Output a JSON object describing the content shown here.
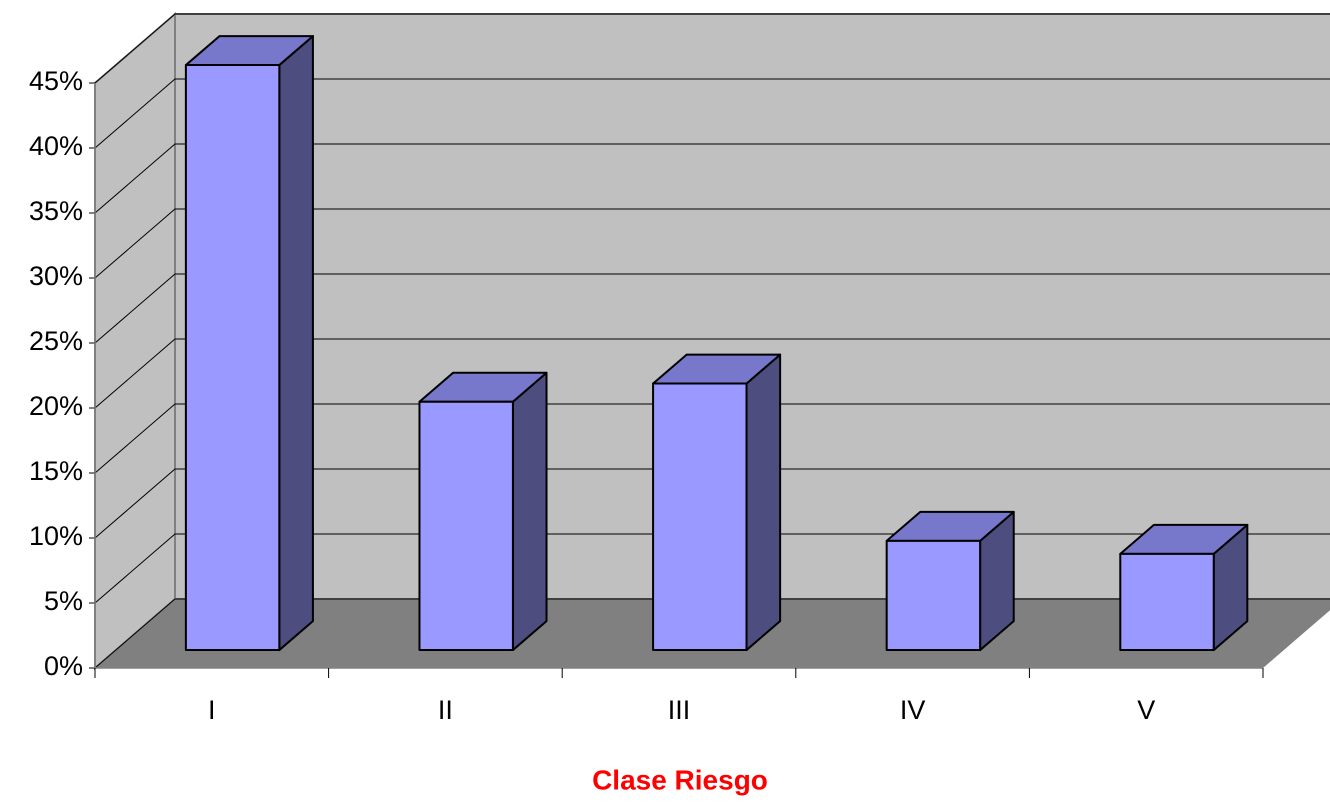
{
  "chart_data": {
    "type": "bar3d",
    "x_label": "Clase Riesgo",
    "categories": [
      "I",
      "II",
      "III",
      "IV",
      "V"
    ],
    "values": [
      45,
      19.1,
      20.5,
      8.4,
      7.4
    ],
    "color": "#9999ff",
    "ylim": [
      0,
      45
    ],
    "yticks": [
      {
        "value": 0,
        "label": "0%"
      },
      {
        "value": 5,
        "label": "5%"
      },
      {
        "value": 10,
        "label": "10%"
      },
      {
        "value": 15,
        "label": "15%"
      },
      {
        "value": 20,
        "label": "20%"
      },
      {
        "value": 25,
        "label": "25%"
      },
      {
        "value": 30,
        "label": "30%"
      },
      {
        "value": 35,
        "label": "35%"
      },
      {
        "value": 40,
        "label": "40%"
      },
      {
        "value": 45,
        "label": "45%"
      }
    ],
    "grid": true
  }
}
